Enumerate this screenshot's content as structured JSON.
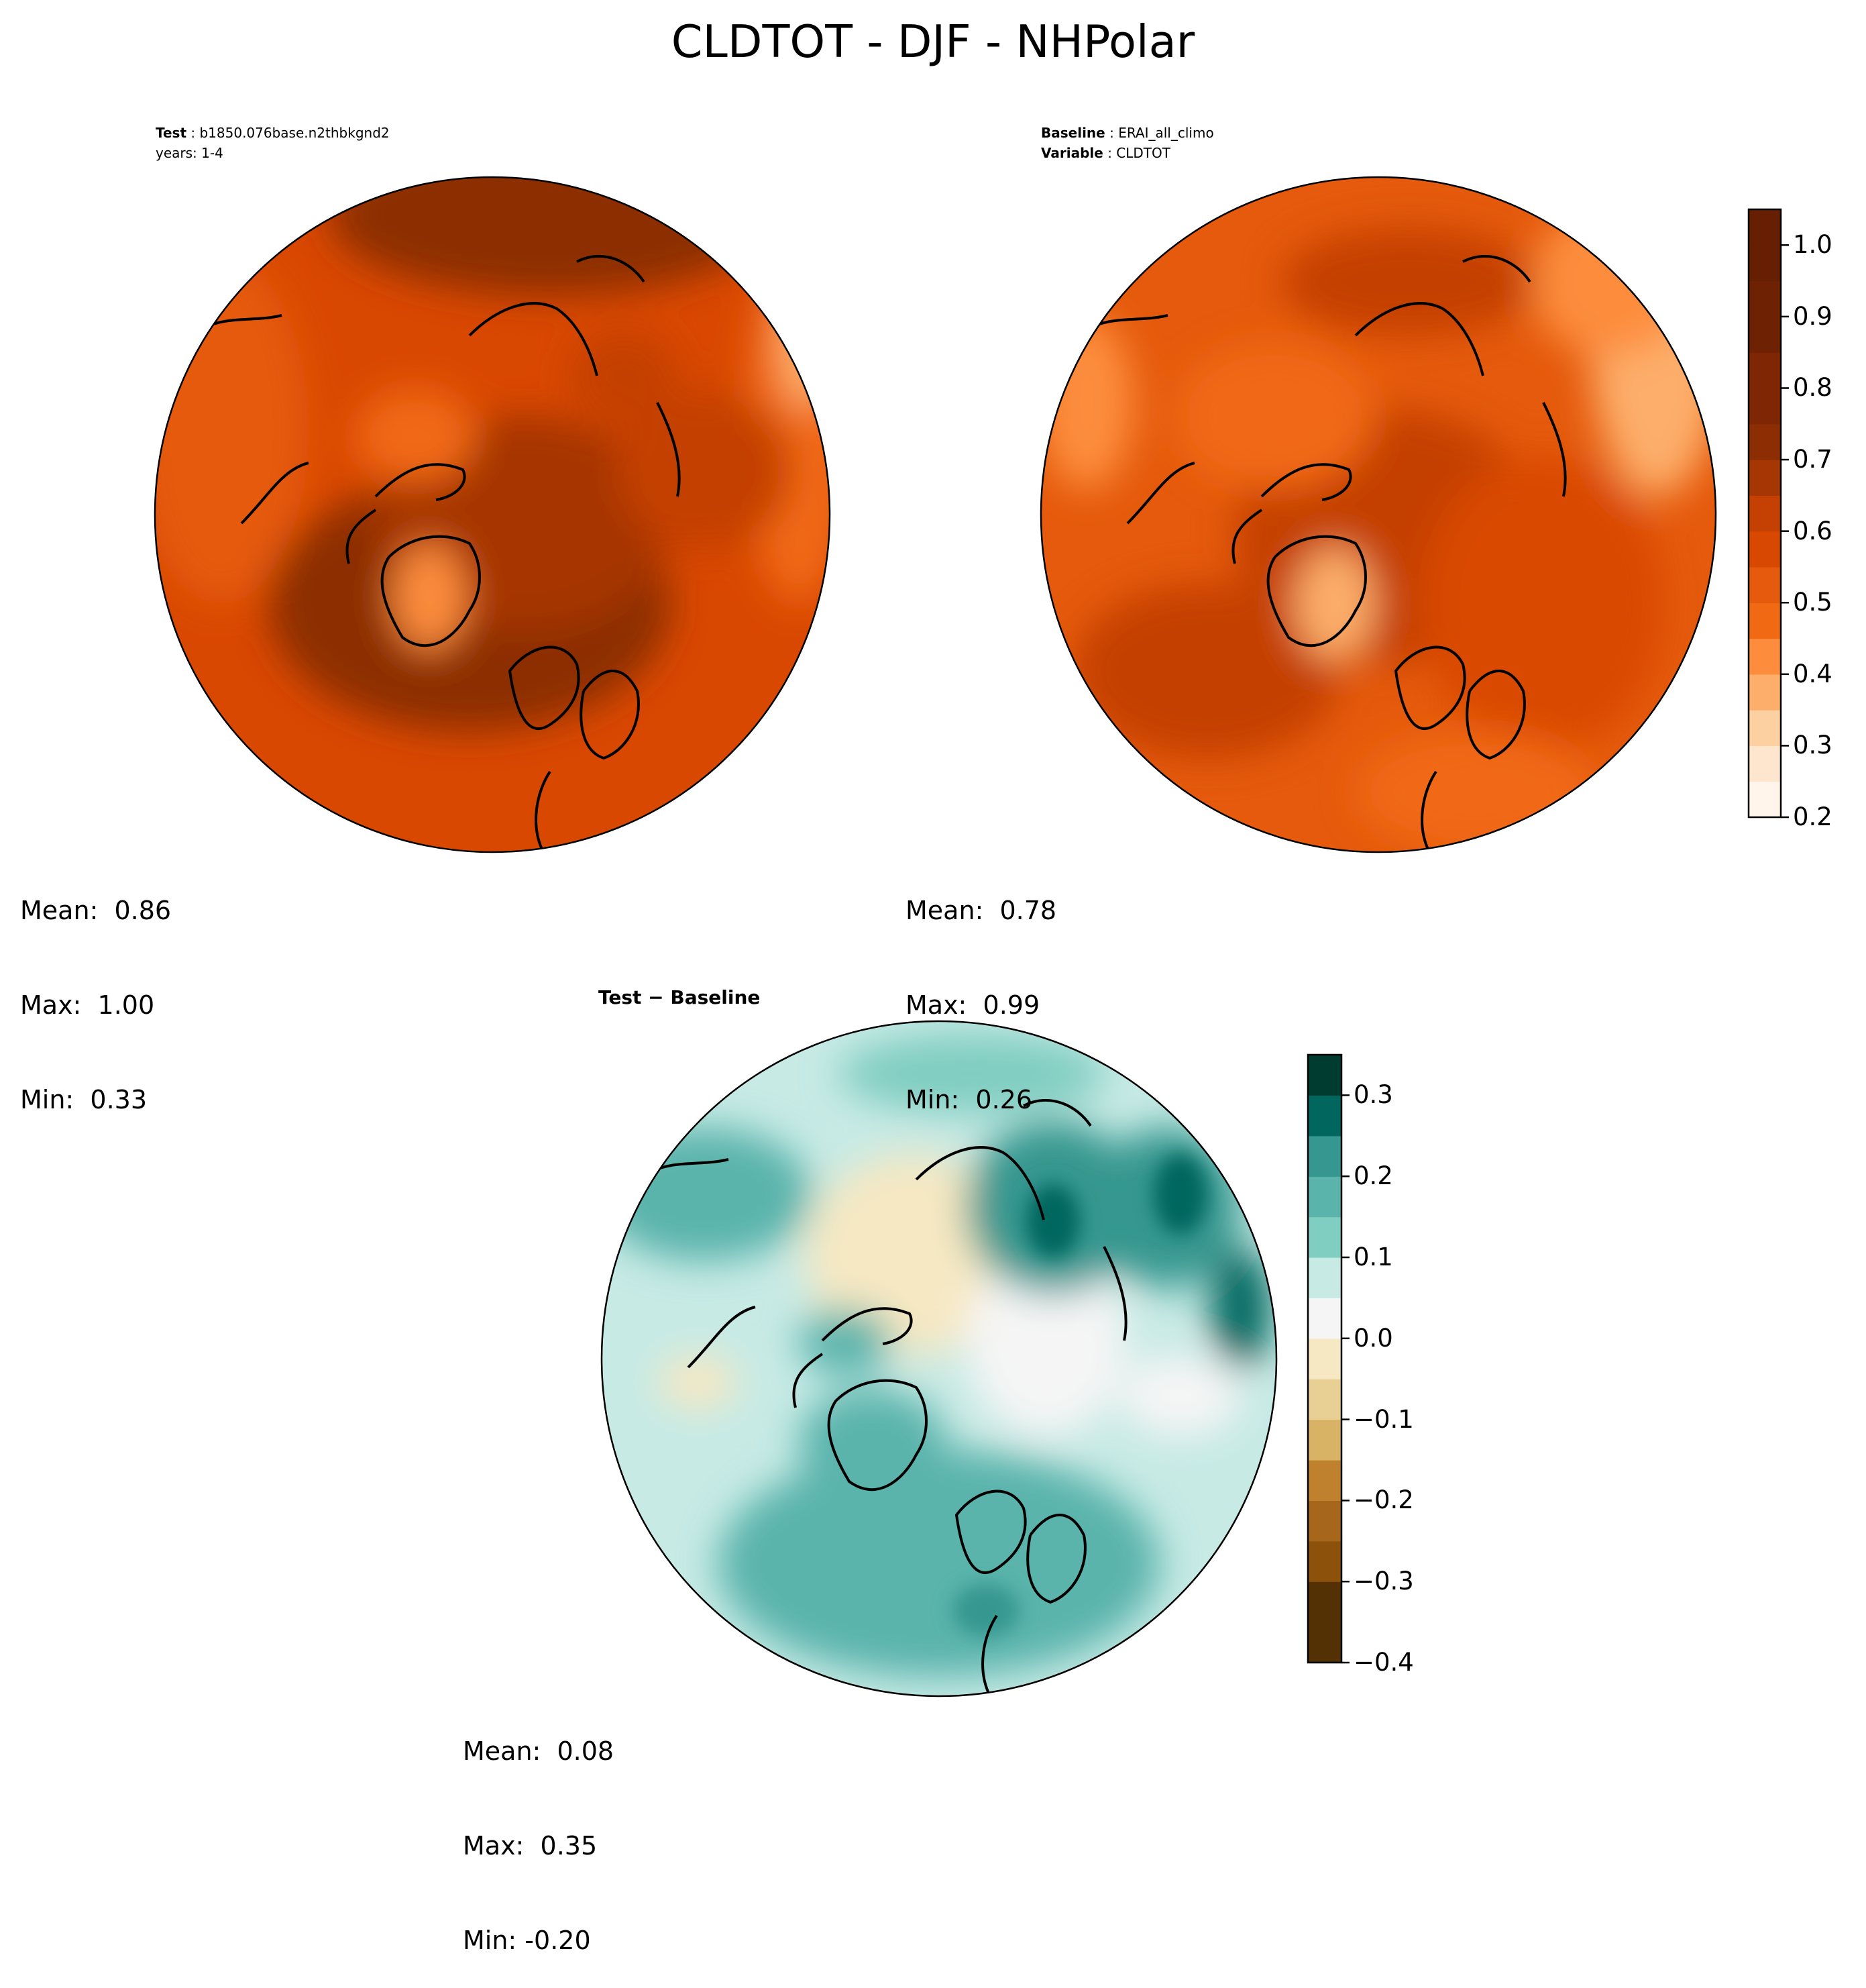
{
  "title": "CLDTOT - DJF - NHPolar",
  "test_panel": {
    "label": "Test",
    "case": "b1850.076base.n2thbkgnd2",
    "years": "years: 1-4",
    "stats": {
      "mean": "Mean:  0.86",
      "max": "Max:  1.00",
      "min": "Min:  0.33"
    }
  },
  "baseline_panel": {
    "label": "Baseline",
    "case": "ERAI_all_climo",
    "variable_label": "Variable",
    "variable": "CLDTOT",
    "stats": {
      "mean": "Mean:  0.78",
      "max": "Max:  0.99",
      "min": "Min:  0.26"
    }
  },
  "diff_panel": {
    "title": "Test − Baseline",
    "stats": {
      "mean": "Mean:  0.08",
      "max": "Max:  0.35",
      "min": "Min: -0.20"
    }
  },
  "colors": {
    "oranges": [
      "#fff5eb",
      "#fee6ce",
      "#fdd0a2",
      "#fdae6b",
      "#fd8d3c",
      "#f16913",
      "#e55a0c",
      "#d94801",
      "#c44103",
      "#a63603",
      "#8c2d04",
      "#7f2704"
    ],
    "brbg": [
      "#543005",
      "#8c510a",
      "#a6661b",
      "#bf812d",
      "#d8b365",
      "#e8cf94",
      "#f6e8c3",
      "#f5f5f5",
      "#c7eae5",
      "#80cdc1",
      "#5ab4ac",
      "#35978f",
      "#01665e",
      "#003c30"
    ],
    "coastline": "#000000"
  },
  "chart_data": [
    {
      "type": "heatmap",
      "name": "test",
      "projection": "north polar stereographic",
      "colorbar": {
        "min": 0.2,
        "max": 1.05,
        "ticks": [
          "0.2",
          "0.3",
          "0.4",
          "0.5",
          "0.6",
          "0.7",
          "0.8",
          "0.9",
          "1.0"
        ]
      },
      "values_desc": {
        "mean": 0.86,
        "max": 1.0,
        "min": 0.33
      }
    },
    {
      "type": "heatmap",
      "name": "baseline",
      "projection": "north polar stereographic",
      "colorbar": {
        "min": 0.2,
        "max": 1.05,
        "ticks": [
          "0.2",
          "0.3",
          "0.4",
          "0.5",
          "0.6",
          "0.7",
          "0.8",
          "0.9",
          "1.0"
        ]
      },
      "values_desc": {
        "mean": 0.78,
        "max": 0.99,
        "min": 0.26
      }
    },
    {
      "type": "heatmap",
      "name": "difference",
      "projection": "north polar stereographic",
      "colorbar": {
        "min": -0.4,
        "max": 0.35,
        "ticks": [
          "0.3",
          "0.2",
          "0.1",
          "0.0",
          "−0.1",
          "−0.2",
          "−0.3",
          "−0.4"
        ],
        "tick_values": [
          0.3,
          0.2,
          0.1,
          0.0,
          -0.1,
          -0.2,
          -0.3,
          -0.4
        ]
      },
      "values_desc": {
        "mean": 0.08,
        "max": 0.35,
        "min": -0.2
      }
    }
  ]
}
